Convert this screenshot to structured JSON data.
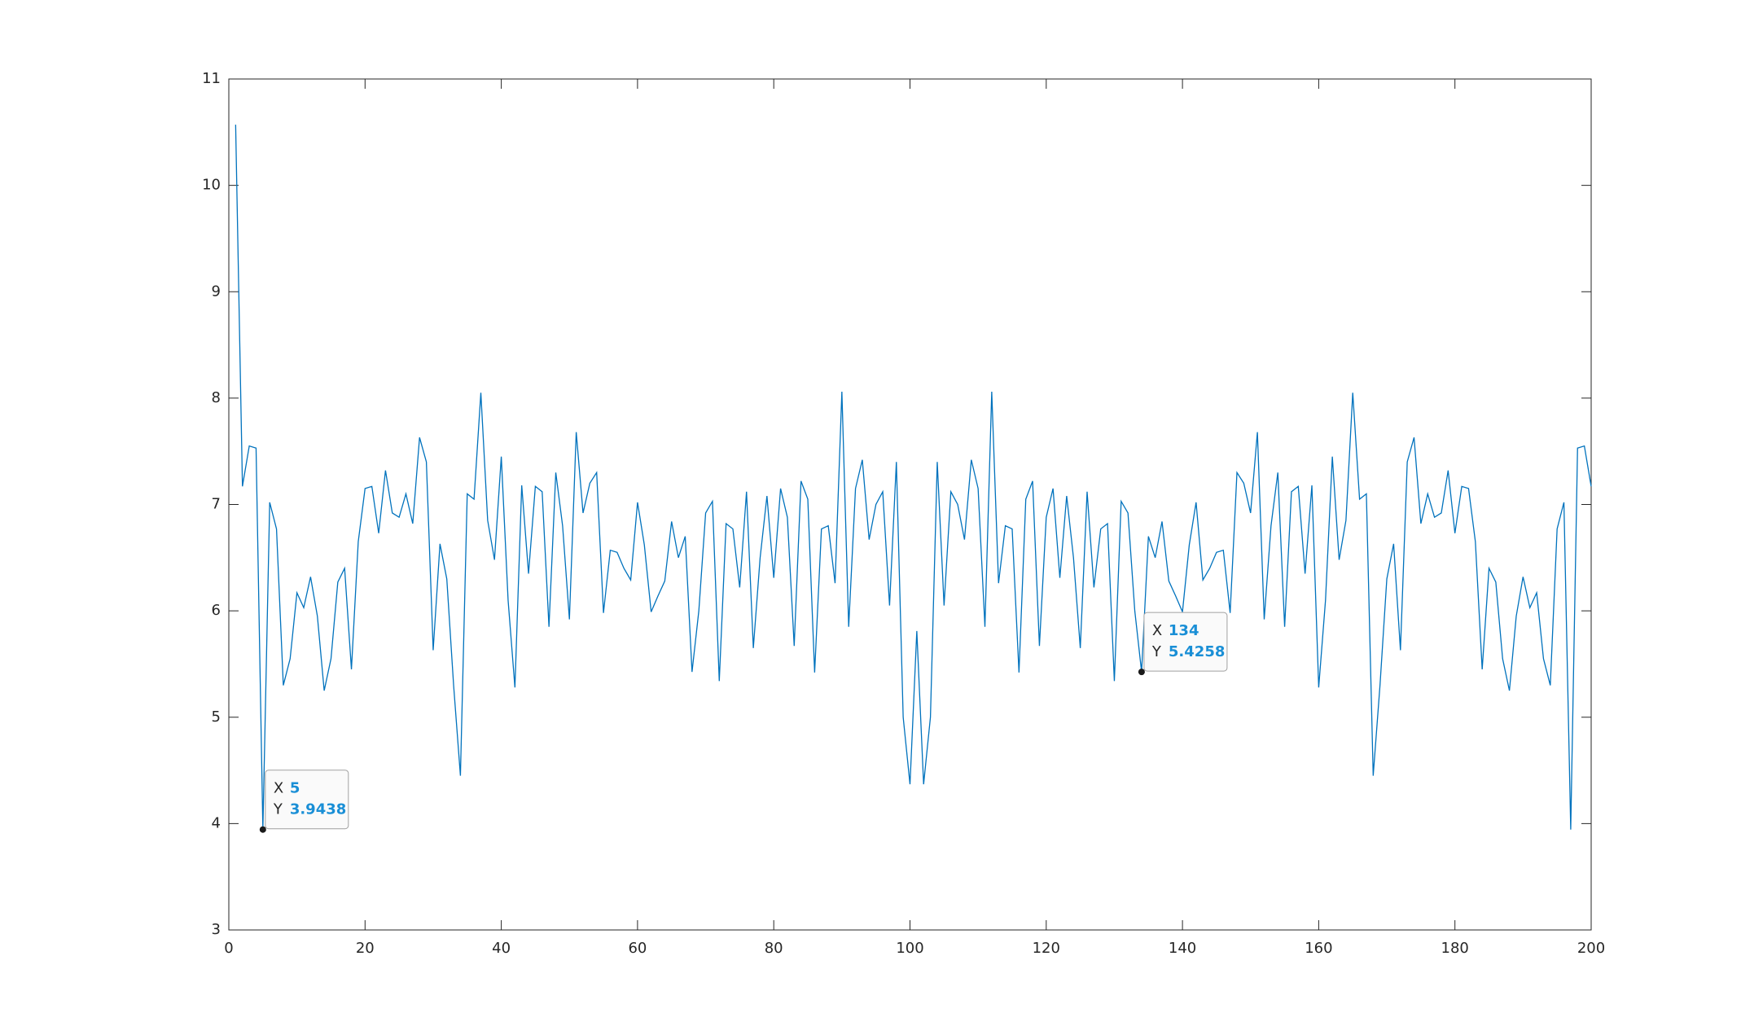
{
  "chart_data": {
    "type": "line",
    "color": "#0072bd",
    "x": [
      1,
      2,
      3,
      4,
      5,
      6,
      7,
      8,
      9,
      10,
      11,
      12,
      13,
      14,
      15,
      16,
      17,
      18,
      19,
      20,
      21,
      22,
      23,
      24,
      25,
      26,
      27,
      28,
      29,
      30,
      31,
      32,
      33,
      34,
      35,
      36,
      37,
      38,
      39,
      40,
      41,
      42,
      43,
      44,
      45,
      46,
      47,
      48,
      49,
      50,
      51,
      52,
      53,
      54,
      55,
      56,
      57,
      58,
      59,
      60,
      61,
      62,
      63,
      64,
      65,
      66,
      67,
      68,
      69,
      70,
      71,
      72,
      73,
      74,
      75,
      76,
      77,
      78,
      79,
      80,
      81,
      82,
      83,
      84,
      85,
      86,
      87,
      88,
      89,
      90,
      91,
      92,
      93,
      94,
      95,
      96,
      97,
      98,
      99,
      100,
      101,
      102,
      103,
      104,
      105,
      106,
      107,
      108,
      109,
      110,
      111,
      112,
      113,
      114,
      115,
      116,
      117,
      118,
      119,
      120,
      121,
      122,
      123,
      124,
      125,
      126,
      127,
      128,
      129,
      130,
      131,
      132,
      133,
      134,
      135,
      136,
      137,
      138,
      139,
      140,
      141,
      142,
      143,
      144,
      145,
      146,
      147,
      148,
      149,
      150,
      151,
      152,
      153,
      154,
      155,
      156,
      157,
      158,
      159,
      160,
      161,
      162,
      163,
      164,
      165,
      166,
      167,
      168,
      169,
      170,
      171,
      172,
      173,
      174,
      175,
      176,
      177,
      178,
      179,
      180,
      181,
      182,
      183,
      184,
      185,
      186,
      187,
      188,
      189,
      190,
      191,
      192,
      193,
      194,
      195,
      196,
      197,
      198,
      199,
      200
    ],
    "values": [
      10.57,
      7.17,
      7.55,
      7.53,
      3.9438,
      7.02,
      6.77,
      5.3,
      5.55,
      6.17,
      6.03,
      6.32,
      5.95,
      5.25,
      5.55,
      6.27,
      6.4,
      5.45,
      6.65,
      7.15,
      7.17,
      6.73,
      7.32,
      6.92,
      6.88,
      7.1,
      6.82,
      7.63,
      7.4,
      5.63,
      6.63,
      6.3,
      5.3,
      4.45,
      7.1,
      7.05,
      8.05,
      6.85,
      6.48,
      7.45,
      6.1,
      5.28,
      7.18,
      6.35,
      7.17,
      7.12,
      5.85,
      7.3,
      6.8,
      5.92,
      7.68,
      6.92,
      7.2,
      7.3,
      5.98,
      6.57,
      6.55,
      6.4,
      6.29,
      7.02,
      6.62,
      5.99,
      6.14,
      6.28,
      6.84,
      6.5,
      6.7,
      5.4258,
      6.0,
      6.92,
      7.03,
      5.34,
      6.82,
      6.77,
      6.22,
      7.12,
      5.65,
      6.5,
      7.08,
      6.31,
      7.15,
      6.88,
      5.67,
      7.22,
      7.05,
      5.42,
      6.77,
      6.8,
      6.26,
      8.06,
      5.85,
      7.15,
      7.42,
      6.67,
      7.0,
      7.12,
      6.05,
      7.4,
      5.0,
      4.37,
      5.81,
      4.37,
      5.0,
      7.4,
      6.05,
      7.12,
      7.0,
      6.67,
      7.42,
      7.15,
      5.85,
      8.06,
      6.26,
      6.8,
      6.77,
      5.42,
      7.05,
      7.22,
      5.67,
      6.88,
      7.15,
      6.31,
      7.08,
      6.5,
      5.65,
      7.12,
      6.22,
      6.77,
      6.82,
      5.34,
      7.03,
      6.92,
      6.0,
      5.4258,
      6.7,
      6.5,
      6.84,
      6.28,
      6.14,
      5.99,
      6.62,
      7.02,
      6.29,
      6.4,
      6.55,
      6.57,
      5.98,
      7.3,
      7.2,
      6.92,
      7.68,
      5.92,
      6.8,
      7.3,
      5.85,
      7.12,
      7.17,
      6.35,
      7.18,
      5.28,
      6.1,
      7.45,
      6.48,
      6.85,
      8.05,
      7.05,
      7.1,
      4.45,
      5.3,
      6.3,
      6.63,
      5.63,
      7.4,
      7.63,
      6.82,
      7.1,
      6.88,
      6.92,
      7.32,
      6.73,
      7.17,
      7.15,
      6.65,
      5.45,
      6.4,
      6.27,
      5.55,
      5.25,
      5.95,
      6.32,
      6.03,
      6.17,
      5.55,
      5.3,
      6.77,
      7.02,
      3.9438,
      7.53,
      7.55,
      7.17
    ],
    "xlim": [
      0,
      200
    ],
    "xticks": [
      0,
      20,
      40,
      60,
      80,
      100,
      120,
      140,
      160,
      180,
      200
    ],
    "ylim": [
      3,
      11
    ],
    "yticks": [
      3,
      4,
      5,
      6,
      7,
      8,
      9,
      10,
      11
    ],
    "datatips": [
      {
        "x_label": "X",
        "x": 5,
        "y_label": "Y",
        "y": 3.9438
      },
      {
        "x_label": "X",
        "x": 134,
        "y_label": "Y",
        "y": 5.4258
      }
    ]
  }
}
